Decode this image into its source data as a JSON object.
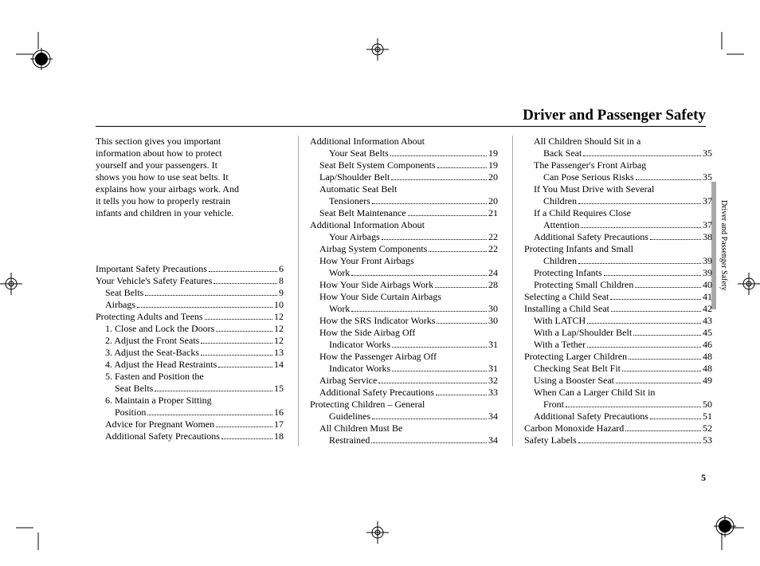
{
  "header": {
    "title": "Driver and Passenger Safety"
  },
  "side_label": "Driver and Passenger Safety",
  "page_number": "5",
  "intro_lines": [
    "This section gives you important",
    "information about how to protect",
    "yourself and your passengers. It",
    "shows you how to use seat belts. It",
    "explains how your airbags work. And",
    "it tells you how to properly restrain",
    "infants and children in your vehicle."
  ],
  "col1": [
    {
      "label": "Important Safety Precautions",
      "page": "6",
      "indent": 0
    },
    {
      "label": "Your Vehicle's Safety Features",
      "page": "8",
      "indent": 0
    },
    {
      "label": "Seat Belts",
      "page": "9",
      "indent": 1
    },
    {
      "label": "Airbags",
      "page": "10",
      "indent": 1
    },
    {
      "label": "Protecting Adults and Teens",
      "page": "12",
      "indent": 0
    },
    {
      "label": "1. Close and Lock the Doors",
      "page": "12",
      "indent": 1
    },
    {
      "label": "2. Adjust the Front Seats",
      "page": "12",
      "indent": 1
    },
    {
      "label": "3. Adjust the Seat-Backs",
      "page": "13",
      "indent": 1
    },
    {
      "label": "4. Adjust the Head Restraints",
      "page": "14",
      "indent": 1
    },
    {
      "label_cont": "5. Fasten and Position the",
      "indent": 1
    },
    {
      "label": "Seat Belts",
      "page": "15",
      "indent": 2
    },
    {
      "label_cont": "6. Maintain a Proper Sitting",
      "indent": 1
    },
    {
      "label": "Position",
      "page": "16",
      "indent": 2
    },
    {
      "label": "Advice for Pregnant Women",
      "page": "17",
      "indent": 1
    },
    {
      "label": "Additional Safety Precautions",
      "page": "18",
      "indent": 1
    }
  ],
  "col2": [
    {
      "label_cont": "Additional Information About",
      "indent": 0
    },
    {
      "label": "Your Seat Belts",
      "page": "19",
      "indent": 2
    },
    {
      "label": "Seat Belt System Components",
      "page": "19",
      "indent": 1
    },
    {
      "label": "Lap/Shoulder Belt",
      "page": "20",
      "indent": 1
    },
    {
      "label_cont": "Automatic Seat Belt",
      "indent": 1
    },
    {
      "label": "Tensioners",
      "page": "20",
      "indent": 2
    },
    {
      "label": "Seat Belt Maintenance",
      "page": "21",
      "indent": 1
    },
    {
      "label_cont": "Additional Information About",
      "indent": 0
    },
    {
      "label": "Your Airbags",
      "page": "22",
      "indent": 2
    },
    {
      "label": "Airbag System Components",
      "page": "22",
      "indent": 1
    },
    {
      "label_cont": "How Your Front Airbags",
      "indent": 1
    },
    {
      "label": "Work",
      "page": "24",
      "indent": 2
    },
    {
      "label": "How Your Side Airbags Work",
      "page": "28",
      "indent": 1
    },
    {
      "label_cont": "How Your Side Curtain Airbags",
      "indent": 1
    },
    {
      "label": "Work",
      "page": "30",
      "indent": 2
    },
    {
      "label": "How the SRS Indicator Works",
      "page": "30",
      "indent": 1
    },
    {
      "label_cont": "How the Side Airbag Off",
      "indent": 1
    },
    {
      "label": "Indicator Works",
      "page": "31",
      "indent": 2
    },
    {
      "label_cont": "How the Passenger Airbag Off",
      "indent": 1
    },
    {
      "label": "Indicator Works",
      "page": "31",
      "indent": 2
    },
    {
      "label": "Airbag Service",
      "page": "32",
      "indent": 1
    },
    {
      "label": "Additional Safety Precautions",
      "page": "33",
      "indent": 1
    },
    {
      "label_cont": "Protecting Children – General",
      "indent": 0
    },
    {
      "label": "Guidelines",
      "page": "34",
      "indent": 2
    },
    {
      "label_cont": "All Children Must Be",
      "indent": 1
    },
    {
      "label": "Restrained",
      "page": "34",
      "indent": 2
    }
  ],
  "col3": [
    {
      "label_cont": "All Children Should Sit in a",
      "indent": 1
    },
    {
      "label": "Back Seat",
      "page": "35",
      "indent": 2
    },
    {
      "label_cont": "The Passenger's Front Airbag",
      "indent": 1
    },
    {
      "label": "Can Pose Serious Risks",
      "page": "35",
      "indent": 2
    },
    {
      "label_cont": "If You Must Drive with Several",
      "indent": 1
    },
    {
      "label": "Children",
      "page": "37",
      "indent": 2
    },
    {
      "label_cont": "If a Child Requires Close",
      "indent": 1
    },
    {
      "label": "Attention",
      "page": "37",
      "indent": 2
    },
    {
      "label": "Additional Safety Precautions",
      "page": "38",
      "indent": 1
    },
    {
      "label_cont": "Protecting Infants and Small",
      "indent": 0
    },
    {
      "label": "Children",
      "page": "39",
      "indent": 2
    },
    {
      "label": "Protecting Infants",
      "page": "39",
      "indent": 1
    },
    {
      "label": "Protecting Small Children",
      "page": "40",
      "indent": 1
    },
    {
      "label": "Selecting a Child Seat",
      "page": "41",
      "indent": 0
    },
    {
      "label": "Installing a Child Seat",
      "page": "42",
      "indent": 0
    },
    {
      "label": "With LATCH",
      "page": "43",
      "indent": 1
    },
    {
      "label": "With a Lap/Shoulder Belt",
      "page": "45",
      "indent": 1
    },
    {
      "label": "With a Tether",
      "page": "46",
      "indent": 1
    },
    {
      "label": "Protecting Larger Children",
      "page": "48",
      "indent": 0
    },
    {
      "label": "Checking Seat Belt Fit",
      "page": "48",
      "indent": 1
    },
    {
      "label": "Using a Booster Seat",
      "page": "49",
      "indent": 1
    },
    {
      "label_cont": "When Can a Larger Child Sit in",
      "indent": 1
    },
    {
      "label": "Front",
      "page": "50",
      "indent": 2
    },
    {
      "label": "Additional Safety Precautions",
      "page": "51",
      "indent": 1
    },
    {
      "label": "Carbon Monoxide Hazard",
      "page": "52",
      "indent": 0
    },
    {
      "label": "Safety Labels",
      "page": "53",
      "indent": 0
    }
  ]
}
